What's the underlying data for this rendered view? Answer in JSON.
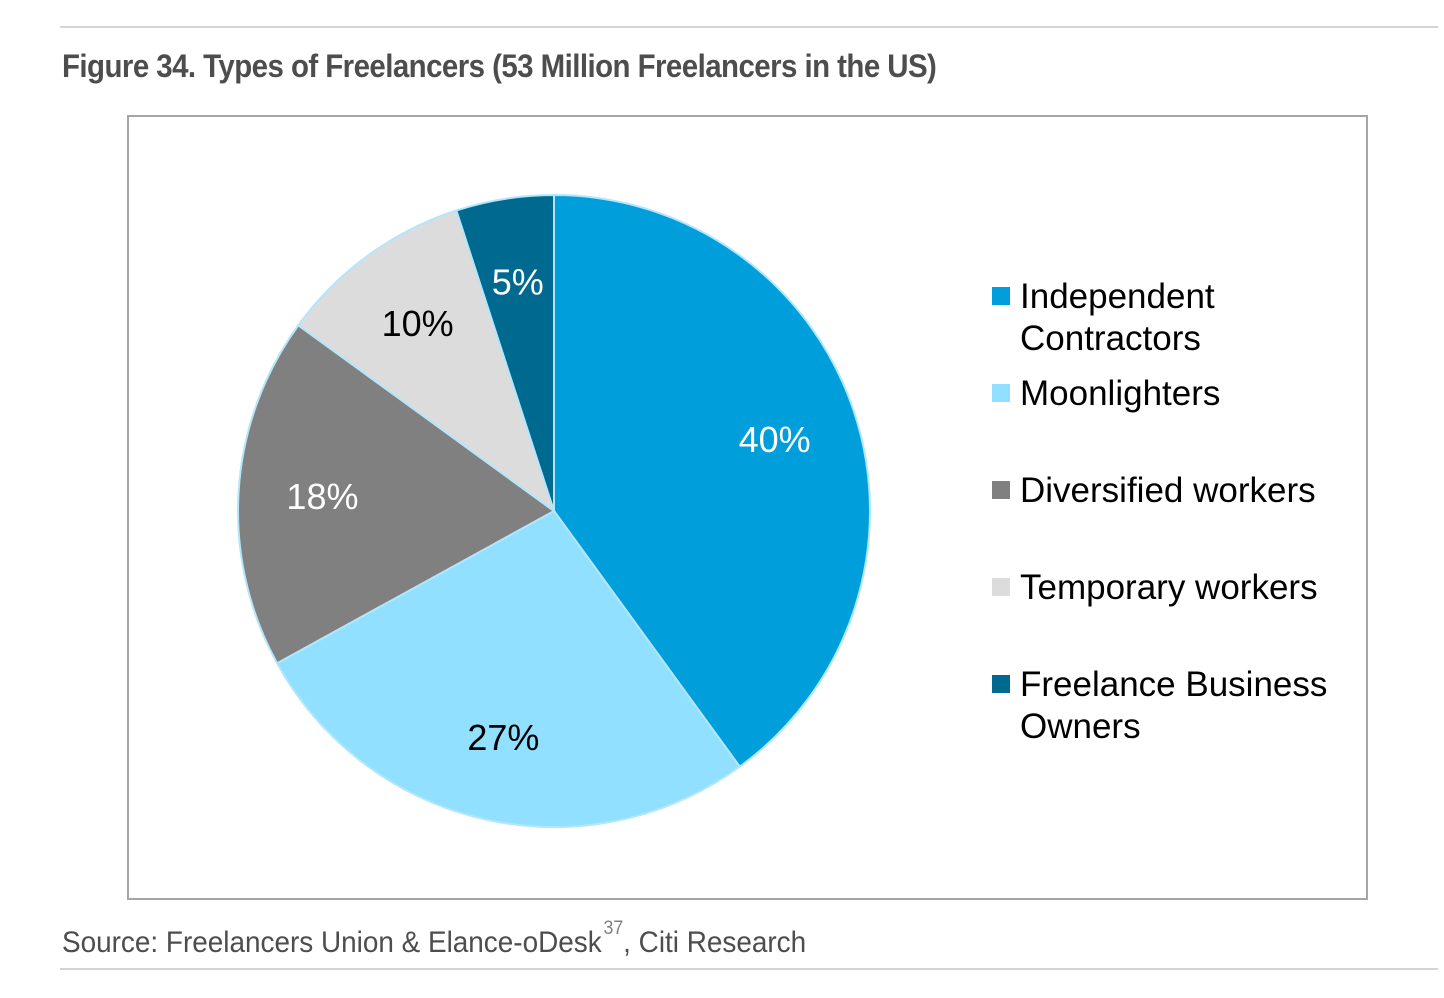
{
  "page": {
    "title": "Figure 34. Types of Freelancers (53 Million Freelancers in the US)",
    "source_text": "Source: Freelancers Union & Elance-oDesk",
    "source_footnote": "37",
    "source_suffix": ", Citi Research"
  },
  "chart_data": {
    "type": "pie",
    "title": "",
    "legend_position": "right",
    "slices": [
      {
        "label": "Independent Contractors",
        "value": 40,
        "display": "40%",
        "color": "#009fdb",
        "label_color": "#ffffff"
      },
      {
        "label": "Moonlighters",
        "value": 27,
        "display": "27%",
        "color": "#91e0ff",
        "label_color": "#000000"
      },
      {
        "label": "Diversified workers",
        "value": 18,
        "display": "18%",
        "color": "#808080",
        "label_color": "#ffffff"
      },
      {
        "label": "Temporary workers",
        "value": 10,
        "display": "10%",
        "color": "#dcdcdc",
        "label_color": "#000000"
      },
      {
        "label": "Freelance Business Owners",
        "value": 5,
        "display": "5%",
        "color": "#00698f",
        "label_color": "#ffffff"
      }
    ]
  }
}
